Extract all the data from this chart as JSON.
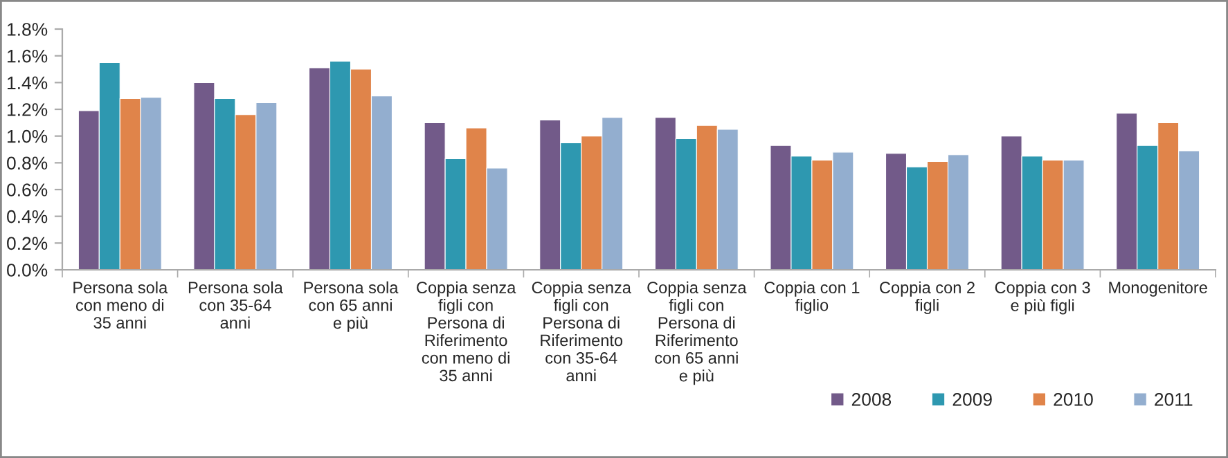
{
  "chart_data": {
    "type": "bar",
    "categories": [
      "Persona sola con meno di 35 anni",
      "Persona sola con 35-64 anni",
      "Persona sola con 65 anni e più",
      "Coppia senza figli con Persona di Riferimento con meno di 35 anni",
      "Coppia senza figli con Persona di Riferimento con 35-64 anni",
      "Coppia senza figli con Persona di Riferimento con 65 anni e più",
      "Coppia con 1 figlio",
      "Coppia con 2 figli",
      "Coppia con 3 e più figli",
      "Monogenitore"
    ],
    "series": [
      {
        "name": "2008",
        "color": "#725a89",
        "values": [
          1.19,
          1.4,
          1.51,
          1.1,
          1.12,
          1.14,
          0.93,
          0.87,
          1.0,
          1.17
        ]
      },
      {
        "name": "2009",
        "color": "#2e98b0",
        "values": [
          1.55,
          1.28,
          1.56,
          0.83,
          0.95,
          0.98,
          0.85,
          0.77,
          0.85,
          0.93
        ]
      },
      {
        "name": "2010",
        "color": "#e0844a",
        "values": [
          1.28,
          1.16,
          1.5,
          1.06,
          1.0,
          1.08,
          0.82,
          0.81,
          0.82,
          1.1
        ]
      },
      {
        "name": "2011",
        "color": "#93aecf",
        "values": [
          1.29,
          1.25,
          1.3,
          0.76,
          1.14,
          1.05,
          0.88,
          0.86,
          0.82,
          0.89
        ]
      }
    ],
    "ylim": [
      0,
      1.8
    ],
    "yticks": [
      {
        "value": 0,
        "label": "0.0%"
      },
      {
        "value": 0.2,
        "label": "0.2%"
      },
      {
        "value": 0.4,
        "label": "0.4%"
      },
      {
        "value": 0.6,
        "label": "0.6%"
      },
      {
        "value": 0.8,
        "label": "0.8%"
      },
      {
        "value": 1.0,
        "label": "1.0%"
      },
      {
        "value": 1.2,
        "label": "1.2%"
      },
      {
        "value": 1.4,
        "label": "1.4%"
      },
      {
        "value": 1.6,
        "label": "1.6%"
      },
      {
        "value": 1.8,
        "label": "1.8%"
      }
    ],
    "grid": false,
    "legend": "bottom right"
  }
}
